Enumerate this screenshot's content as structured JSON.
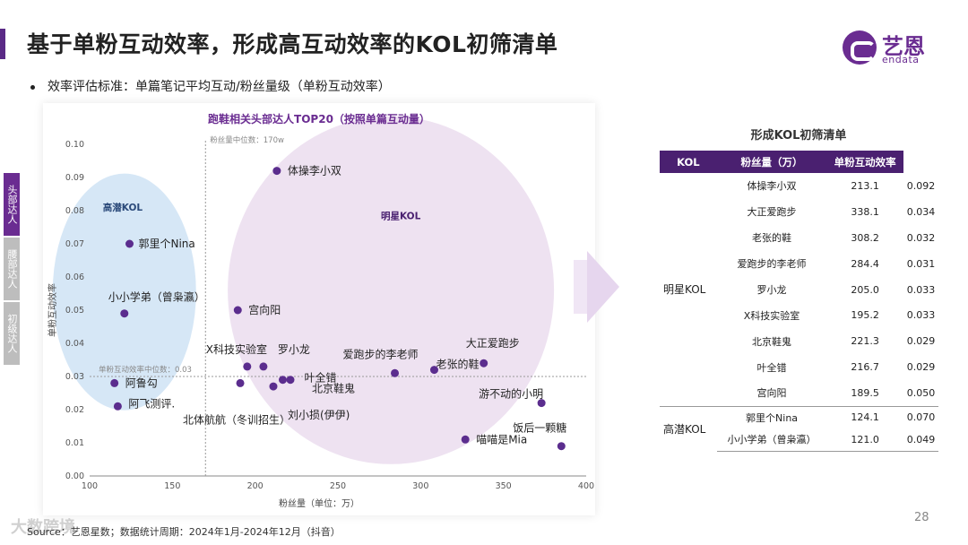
{
  "page": {
    "title": "基于单粉互动效率，形成高互动效率的KOL初筛清单",
    "bullet": "效率评估标准：单篇笔记平均互动/粉丝量级（单粉互动效率）",
    "source": "Source：艺恩星数；数据统计周期：2024年1月-2024年12月（抖音）",
    "watermark": "大数跨境",
    "page_number": "28"
  },
  "logo": {
    "cn": "艺恩",
    "en": "endata"
  },
  "side_tabs": [
    {
      "label": "头部达人",
      "active": true
    },
    {
      "label": "腰部达人",
      "active": false
    },
    {
      "label": "初级达人",
      "active": false
    }
  ],
  "chart_data": {
    "type": "scatter",
    "title": "跑鞋相关头部达人TOP20（按照单篇互动量）",
    "xlabel": "粉丝量（单位：万）",
    "ylabel": "单粉互动效率",
    "xlim": [
      100,
      400
    ],
    "ylim": [
      0,
      0.1
    ],
    "xticks": [
      100,
      150,
      200,
      250,
      300,
      350,
      400
    ],
    "yticks": [
      0.0,
      0.01,
      0.02,
      0.03,
      0.04,
      0.05,
      0.06,
      0.07,
      0.08,
      0.09,
      0.1
    ],
    "grid": false,
    "reference_lines": {
      "x": {
        "value": 170,
        "label": "粉丝量中位数：170w"
      },
      "y": {
        "value": 0.03,
        "label": "单粉互动效率中位数：0.03"
      }
    },
    "clusters": [
      {
        "name": "高潜KOL",
        "color": "#cfe3f5"
      },
      {
        "name": "明星KOL",
        "color": "#eadbee"
      }
    ],
    "point_color": "#5b2d8e",
    "points": [
      {
        "label": "体操李小双",
        "x": 213.1,
        "y": 0.092
      },
      {
        "label": "郭里个Nina",
        "x": 124.1,
        "y": 0.07
      },
      {
        "label": "小小学弟（曾枭瀛）",
        "x": 121.0,
        "y": 0.049
      },
      {
        "label": "宫向阳",
        "x": 189.5,
        "y": 0.05
      },
      {
        "label": "X科技实验室",
        "x": 195.2,
        "y": 0.033
      },
      {
        "label": "罗小龙",
        "x": 205.0,
        "y": 0.033
      },
      {
        "label": "爱跑步的李老师",
        "x": 284.4,
        "y": 0.031
      },
      {
        "label": "大正爱跑步",
        "x": 338.1,
        "y": 0.034
      },
      {
        "label": "老张的鞋",
        "x": 308.2,
        "y": 0.032
      },
      {
        "label": "叶全错",
        "x": 216.7,
        "y": 0.029
      },
      {
        "label": "北京鞋鬼",
        "x": 221.3,
        "y": 0.029
      },
      {
        "label": "阿鲁勾",
        "x": 115.0,
        "y": 0.028
      },
      {
        "label": "阿飞测评.",
        "x": 117.0,
        "y": 0.021
      },
      {
        "label": "北体航航（冬训招生）",
        "x": 191.0,
        "y": 0.028
      },
      {
        "label": "刘小损(伊伊)",
        "x": 211.0,
        "y": 0.027
      },
      {
        "label": "游不动的小明",
        "x": 373.0,
        "y": 0.022
      },
      {
        "label": "饭后一颗糖",
        "x": 385.0,
        "y": 0.009
      },
      {
        "label": "喵喵是Mia",
        "x": 327.0,
        "y": 0.011
      }
    ]
  },
  "table": {
    "title": "形成KOL初筛清单",
    "headers": [
      "KOL",
      "粉丝量（万）",
      "单粉互动效率"
    ],
    "groups": [
      {
        "name": "明星KOL",
        "rows": [
          [
            "体操李小双",
            "213.1",
            "0.092"
          ],
          [
            "大正爱跑步",
            "338.1",
            "0.034"
          ],
          [
            "老张的鞋",
            "308.2",
            "0.032"
          ],
          [
            "爱跑步的李老师",
            "284.4",
            "0.031"
          ],
          [
            "罗小龙",
            "205.0",
            "0.033"
          ],
          [
            "X科技实验室",
            "195.2",
            "0.033"
          ],
          [
            "北京鞋鬼",
            "221.3",
            "0.029"
          ],
          [
            "叶全错",
            "216.7",
            "0.029"
          ],
          [
            "宫向阳",
            "189.5",
            "0.050"
          ]
        ]
      },
      {
        "name": "高潜KOL",
        "rows": [
          [
            "郭里个Nina",
            "124.1",
            "0.070"
          ],
          [
            "小小学弟（曾枭瀛）",
            "121.0",
            "0.049"
          ]
        ]
      }
    ]
  }
}
